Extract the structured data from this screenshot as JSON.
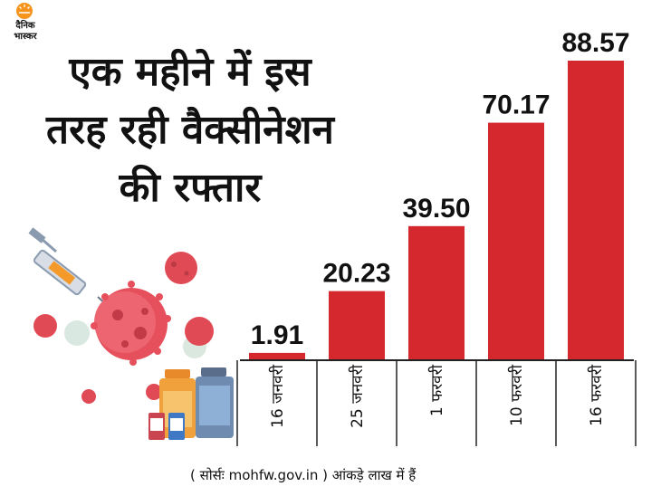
{
  "logo": {
    "line1": "दैनिक",
    "line2": "भास्कर",
    "icon": "sun-icon"
  },
  "title_lines": [
    "एक महीने में इस",
    "तरह रही वैक्सीनेशन",
    "की रफ्तार"
  ],
  "source_note": "( सोर्सः mohfw.gov.in ) आंकड़े लाख में हैं",
  "colors": {
    "bar": "#d5282e",
    "baseline": "#222222",
    "logo_sun": "#f7941d"
  },
  "illustration": {
    "icons": [
      "syringe-icon",
      "virus-icon",
      "vaccine-vials-icon"
    ]
  },
  "chart_data": {
    "type": "bar",
    "title": "एक महीने में इस तरह रही वैक्सीनेशन की रफ्तार",
    "categories": [
      "16 जनवरी",
      "25 जनवरी",
      "1 फरवरी",
      "10 फरवरी",
      "16 फरवरी"
    ],
    "values": [
      1.91,
      20.23,
      39.5,
      70.17,
      88.57
    ],
    "value_labels": [
      "1.91",
      "20.23",
      "39.50",
      "70.17",
      "88.57"
    ],
    "unit": "लाख",
    "ylim": [
      0,
      88.57
    ],
    "grid": false,
    "legend": "none",
    "xlabel": "",
    "ylabel": ""
  }
}
